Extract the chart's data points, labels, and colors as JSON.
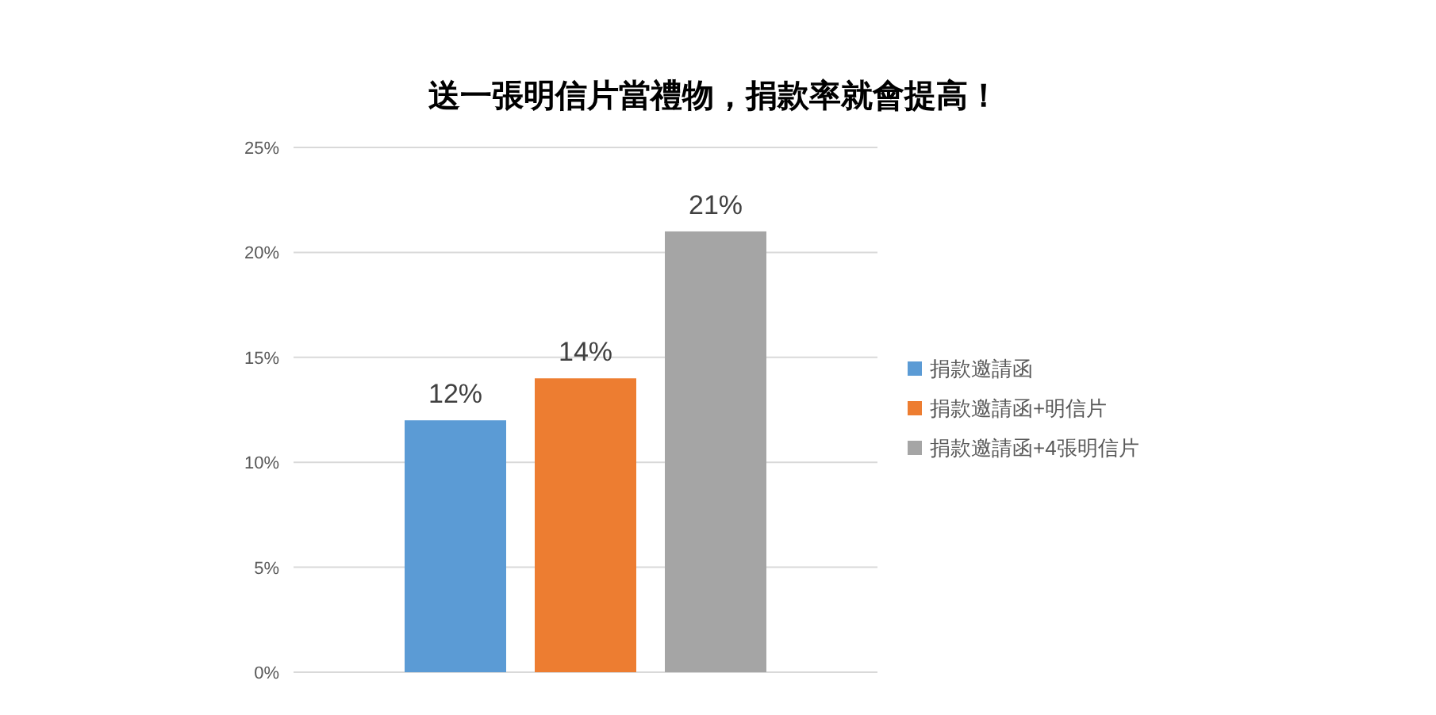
{
  "chart_data": {
    "type": "bar",
    "title": "送一張明信片當禮物，捐款率就會提高！",
    "categories": [
      null
    ],
    "series": [
      {
        "name": "捐款邀請函",
        "color": "#5b9bd5",
        "values": [
          12
        ],
        "value_labels": [
          "12%"
        ]
      },
      {
        "name": "捐款邀請函+明信片",
        "color": "#ed7d31",
        "values": [
          14
        ],
        "value_labels": [
          "14%"
        ]
      },
      {
        "name": "捐款邀請函+4張明信片",
        "color": "#a5a5a5",
        "values": [
          21
        ],
        "value_labels": [
          "21%"
        ]
      }
    ],
    "ylim": [
      0,
      25
    ],
    "yticks": [
      {
        "value": 0,
        "label": "0%"
      },
      {
        "value": 5,
        "label": "5%"
      },
      {
        "value": 10,
        "label": "10%"
      },
      {
        "value": 15,
        "label": "15%"
      },
      {
        "value": 20,
        "label": "20%"
      },
      {
        "value": 25,
        "label": "25%"
      }
    ],
    "grid": "y",
    "legend": "right"
  }
}
